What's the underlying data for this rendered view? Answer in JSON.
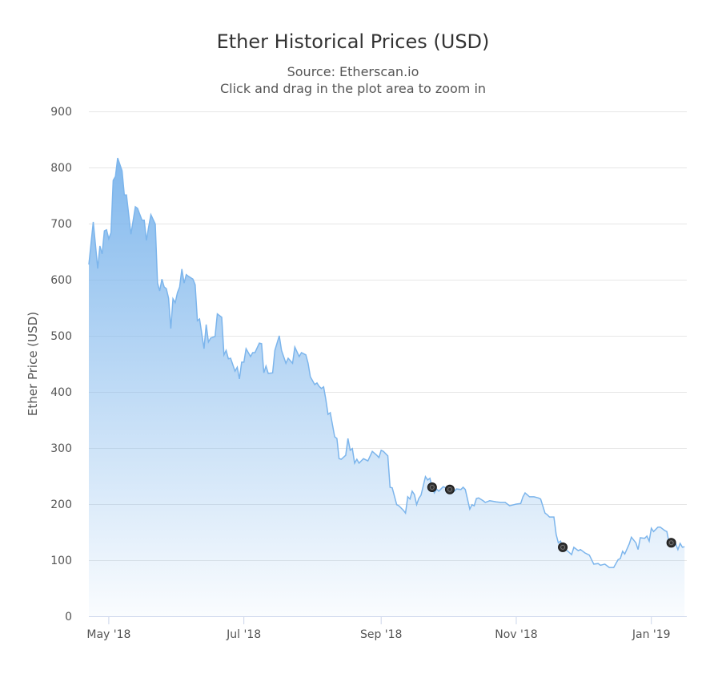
{
  "chart_data": {
    "type": "area",
    "title": "Ether Historical Prices (USD)",
    "subtitle": "Source: Etherscan.io",
    "hint": "Click and drag in the plot area to zoom in",
    "ylabel": "Ether Price (USD)",
    "xlabel": "",
    "ylim": [
      0,
      900
    ],
    "yticks": [
      0,
      100,
      200,
      300,
      400,
      500,
      600,
      700,
      800,
      900
    ],
    "xlim": [
      "2018-04-22",
      "2019-01-17"
    ],
    "xticks": [
      {
        "date": "2018-05-01",
        "label": "May '18"
      },
      {
        "date": "2018-07-01",
        "label": "Jul '18"
      },
      {
        "date": "2018-09-01",
        "label": "Sep '18"
      },
      {
        "date": "2018-11-01",
        "label": "Nov '18"
      },
      {
        "date": "2019-01-01",
        "label": "Jan '19"
      }
    ],
    "grid": true,
    "legend": "none",
    "colors": {
      "line": "#7cb5ec",
      "fill_top": "#7cb5ec",
      "marker": "#333333"
    },
    "markers": [
      "2018-09-24",
      "2018-10-02",
      "2018-11-22",
      "2019-01-10"
    ],
    "series": [
      {
        "points": [
          [
            "2018-04-22",
            627
          ],
          [
            "2018-04-24",
            703
          ],
          [
            "2018-04-26",
            620
          ],
          [
            "2018-04-27",
            660
          ],
          [
            "2018-04-28",
            646
          ],
          [
            "2018-04-29",
            687
          ],
          [
            "2018-04-30",
            689
          ],
          [
            "2018-05-01",
            673
          ],
          [
            "2018-05-02",
            684
          ],
          [
            "2018-05-03",
            777
          ],
          [
            "2018-05-04",
            784
          ],
          [
            "2018-05-05",
            817
          ],
          [
            "2018-05-07",
            794
          ],
          [
            "2018-05-08",
            751
          ],
          [
            "2018-05-09",
            751
          ],
          [
            "2018-05-11",
            681
          ],
          [
            "2018-05-13",
            730
          ],
          [
            "2018-05-14",
            727
          ],
          [
            "2018-05-16",
            706
          ],
          [
            "2018-05-17",
            706
          ],
          [
            "2018-05-18",
            670
          ],
          [
            "2018-05-19",
            694
          ],
          [
            "2018-05-20",
            716
          ],
          [
            "2018-05-22",
            699
          ],
          [
            "2018-05-23",
            594
          ],
          [
            "2018-05-24",
            580
          ],
          [
            "2018-05-25",
            601
          ],
          [
            "2018-05-26",
            587
          ],
          [
            "2018-05-27",
            584
          ],
          [
            "2018-05-28",
            567
          ],
          [
            "2018-05-29",
            513
          ],
          [
            "2018-05-30",
            566
          ],
          [
            "2018-05-31",
            559
          ],
          [
            "2018-06-01",
            577
          ],
          [
            "2018-06-02",
            587
          ],
          [
            "2018-06-03",
            619
          ],
          [
            "2018-06-04",
            594
          ],
          [
            "2018-06-05",
            609
          ],
          [
            "2018-06-06",
            606
          ],
          [
            "2018-06-08",
            601
          ],
          [
            "2018-06-09",
            591
          ],
          [
            "2018-06-10",
            527
          ],
          [
            "2018-06-11",
            530
          ],
          [
            "2018-06-13",
            477
          ],
          [
            "2018-06-14",
            520
          ],
          [
            "2018-06-15",
            489
          ],
          [
            "2018-06-16",
            496
          ],
          [
            "2018-06-18",
            499
          ],
          [
            "2018-06-19",
            539
          ],
          [
            "2018-06-21",
            533
          ],
          [
            "2018-06-22",
            466
          ],
          [
            "2018-06-23",
            474
          ],
          [
            "2018-06-24",
            459
          ],
          [
            "2018-06-25",
            460
          ],
          [
            "2018-06-27",
            437
          ],
          [
            "2018-06-28",
            444
          ],
          [
            "2018-06-29",
            423
          ],
          [
            "2018-06-30",
            453
          ],
          [
            "2018-07-01",
            453
          ],
          [
            "2018-07-02",
            477
          ],
          [
            "2018-07-04",
            463
          ],
          [
            "2018-07-05",
            470
          ],
          [
            "2018-07-06",
            470
          ],
          [
            "2018-07-08",
            487
          ],
          [
            "2018-07-09",
            486
          ],
          [
            "2018-07-10",
            434
          ],
          [
            "2018-07-11",
            446
          ],
          [
            "2018-07-12",
            433
          ],
          [
            "2018-07-14",
            434
          ],
          [
            "2018-07-15",
            474
          ],
          [
            "2018-07-17",
            500
          ],
          [
            "2018-07-18",
            474
          ],
          [
            "2018-07-20",
            451
          ],
          [
            "2018-07-21",
            460
          ],
          [
            "2018-07-23",
            451
          ],
          [
            "2018-07-24",
            480
          ],
          [
            "2018-07-26",
            463
          ],
          [
            "2018-07-27",
            470
          ],
          [
            "2018-07-29",
            466
          ],
          [
            "2018-07-30",
            451
          ],
          [
            "2018-07-31",
            427
          ],
          [
            "2018-08-02",
            413
          ],
          [
            "2018-08-03",
            416
          ],
          [
            "2018-08-04",
            410
          ],
          [
            "2018-08-05",
            406
          ],
          [
            "2018-08-06",
            409
          ],
          [
            "2018-08-07",
            387
          ],
          [
            "2018-08-08",
            360
          ],
          [
            "2018-08-09",
            363
          ],
          [
            "2018-08-11",
            320
          ],
          [
            "2018-08-12",
            317
          ],
          [
            "2018-08-13",
            281
          ],
          [
            "2018-08-14",
            280
          ],
          [
            "2018-08-16",
            287
          ],
          [
            "2018-08-17",
            317
          ],
          [
            "2018-08-18",
            296
          ],
          [
            "2018-08-19",
            299
          ],
          [
            "2018-08-20",
            273
          ],
          [
            "2018-08-21",
            280
          ],
          [
            "2018-08-22",
            273
          ],
          [
            "2018-08-24",
            281
          ],
          [
            "2018-08-26",
            277
          ],
          [
            "2018-08-28",
            294
          ],
          [
            "2018-08-30",
            287
          ],
          [
            "2018-08-31",
            283
          ],
          [
            "2018-09-01",
            296
          ],
          [
            "2018-09-02",
            294
          ],
          [
            "2018-09-04",
            286
          ],
          [
            "2018-09-05",
            230
          ],
          [
            "2018-09-06",
            229
          ],
          [
            "2018-09-08",
            199
          ],
          [
            "2018-09-09",
            197
          ],
          [
            "2018-09-11",
            189
          ],
          [
            "2018-09-12",
            184
          ],
          [
            "2018-09-13",
            213
          ],
          [
            "2018-09-14",
            209
          ],
          [
            "2018-09-15",
            223
          ],
          [
            "2018-09-16",
            217
          ],
          [
            "2018-09-17",
            199
          ],
          [
            "2018-09-18",
            210
          ],
          [
            "2018-09-19",
            216
          ],
          [
            "2018-09-21",
            249
          ],
          [
            "2018-09-22",
            243
          ],
          [
            "2018-09-23",
            246
          ],
          [
            "2018-09-24",
            230
          ],
          [
            "2018-09-25",
            220
          ],
          [
            "2018-09-26",
            227
          ],
          [
            "2018-09-27",
            223
          ],
          [
            "2018-09-29",
            231
          ],
          [
            "2018-10-02",
            226
          ],
          [
            "2018-10-04",
            223
          ],
          [
            "2018-10-05",
            227
          ],
          [
            "2018-10-07",
            226
          ],
          [
            "2018-10-08",
            230
          ],
          [
            "2018-10-09",
            226
          ],
          [
            "2018-10-11",
            191
          ],
          [
            "2018-10-12",
            199
          ],
          [
            "2018-10-13",
            197
          ],
          [
            "2018-10-14",
            210
          ],
          [
            "2018-10-15",
            211
          ],
          [
            "2018-10-17",
            206
          ],
          [
            "2018-10-18",
            203
          ],
          [
            "2018-10-20",
            206
          ],
          [
            "2018-10-23",
            204
          ],
          [
            "2018-10-25",
            203
          ],
          [
            "2018-10-27",
            203
          ],
          [
            "2018-10-29",
            197
          ],
          [
            "2018-10-31",
            199
          ],
          [
            "2018-11-01",
            200
          ],
          [
            "2018-11-03",
            201
          ],
          [
            "2018-11-04",
            213
          ],
          [
            "2018-11-05",
            220
          ],
          [
            "2018-11-07",
            213
          ],
          [
            "2018-11-09",
            213
          ],
          [
            "2018-11-11",
            211
          ],
          [
            "2018-11-12",
            209
          ],
          [
            "2018-11-14",
            184
          ],
          [
            "2018-11-15",
            181
          ],
          [
            "2018-11-16",
            177
          ],
          [
            "2018-11-18",
            177
          ],
          [
            "2018-11-19",
            146
          ],
          [
            "2018-11-20",
            131
          ],
          [
            "2018-11-21",
            134
          ],
          [
            "2018-11-22",
            123
          ],
          [
            "2018-11-24",
            117
          ],
          [
            "2018-11-26",
            110
          ],
          [
            "2018-11-27",
            123
          ],
          [
            "2018-11-29",
            117
          ],
          [
            "2018-11-30",
            119
          ],
          [
            "2018-12-02",
            113
          ],
          [
            "2018-12-04",
            109
          ],
          [
            "2018-12-06",
            93
          ],
          [
            "2018-12-08",
            94
          ],
          [
            "2018-12-09",
            91
          ],
          [
            "2018-12-11",
            93
          ],
          [
            "2018-12-13",
            87
          ],
          [
            "2018-12-15",
            87
          ],
          [
            "2018-12-17",
            101
          ],
          [
            "2018-12-18",
            103
          ],
          [
            "2018-12-19",
            116
          ],
          [
            "2018-12-20",
            111
          ],
          [
            "2018-12-22",
            129
          ],
          [
            "2018-12-23",
            141
          ],
          [
            "2018-12-25",
            131
          ],
          [
            "2018-12-26",
            119
          ],
          [
            "2018-12-27",
            140
          ],
          [
            "2018-12-29",
            139
          ],
          [
            "2018-12-30",
            143
          ],
          [
            "2018-12-31",
            134
          ],
          [
            "2019-01-01",
            157
          ],
          [
            "2019-01-02",
            151
          ],
          [
            "2019-01-04",
            159
          ],
          [
            "2019-01-05",
            159
          ],
          [
            "2019-01-07",
            153
          ],
          [
            "2019-01-08",
            151
          ],
          [
            "2019-01-09",
            131
          ],
          [
            "2019-01-12",
            129
          ],
          [
            "2019-01-13",
            119
          ],
          [
            "2019-01-14",
            130
          ],
          [
            "2019-01-15",
            123
          ],
          [
            "2019-01-16",
            124
          ]
        ]
      }
    ]
  }
}
